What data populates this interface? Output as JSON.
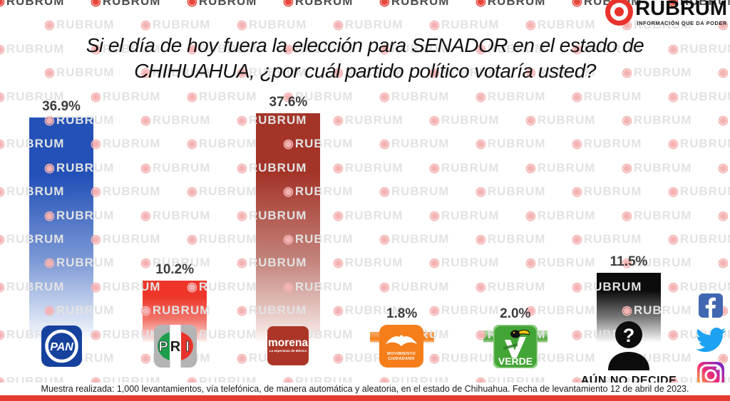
{
  "brand": {
    "name": "RUBRUM",
    "tagline": "INFORMACIÓN QUE DA PODER",
    "accent_color": "#e8332c"
  },
  "watermark": {
    "icon": "bullseye-icon",
    "text": "RUBRUM"
  },
  "title": {
    "line1": "Si el día de hoy fuera la elección para SENADOR en el estado de",
    "line2": "CHIHUAHUA, ¿por cuál partido político votaría usted?"
  },
  "chart_data": {
    "type": "bar",
    "title": "Si el día de hoy fuera la elección para SENADOR en el estado de CHIHUAHUA, ¿por cuál partido político votaría usted?",
    "categories": [
      "PAN",
      "PRI",
      "MORENA",
      "MOVIMIENTO CIUDADANO",
      "PARTIDO VERDE",
      "AÚN NO DECIDE"
    ],
    "values": [
      36.9,
      10.2,
      37.6,
      1.8,
      2.0,
      11.5
    ],
    "labels": [
      "36.9%",
      "10.2%",
      "37.6%",
      "1.8%",
      "2.0%",
      "11.5%"
    ],
    "ylim": [
      0,
      40
    ],
    "grid": false,
    "legend": "none",
    "bar_colors": [
      {
        "top": "#2351b7",
        "mid": "#7e9ad6",
        "light": "#e7edf8"
      },
      {
        "top": "#ee3529",
        "mid": "#f2796f",
        "light": "#fbdcd9"
      },
      {
        "top": "#a43428",
        "mid": "#c3837b",
        "light": "#f2dedb"
      },
      {
        "top": "#f8a055",
        "mid": "#f57b15",
        "light": "#f9b277"
      },
      {
        "top": "#aad79f",
        "mid": "#4ba63c",
        "light": "#90c984"
      },
      {
        "top": "#0c0c0c",
        "mid": "#7a7a7a",
        "light": "#e8e8e8"
      }
    ]
  },
  "logos": {
    "pan": "PAN",
    "pri_p": "P",
    "pri_r": "R",
    "pri_i": "I",
    "morena": "morena",
    "morena_sub": "La esperanza de México",
    "mc_line1": "MOVIMIENTO",
    "mc_line2": "CIUDADANO",
    "verde": "VERDE",
    "undecided_mark": "?"
  },
  "undecided_caption": "AÚN NO DECIDE",
  "footer": "Muestra realizada: 1,000 levantamientos, vía telefónica, de manera automática y aleatoria, en el estado de Chihuahua. Fecha de levantamiento 12 de abril de 2023.",
  "social_icons": [
    "facebook-icon",
    "twitter-icon",
    "instagram-icon"
  ]
}
